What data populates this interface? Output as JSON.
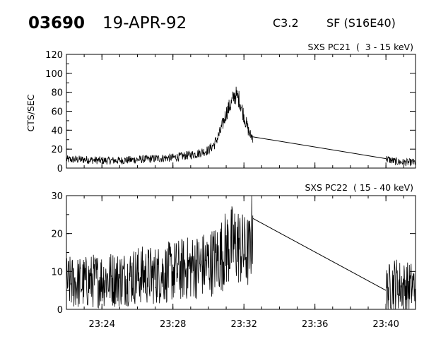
{
  "header": {
    "event_id": "03690",
    "date": "19-APR-92",
    "flare_class": "C3.2",
    "flare_location": "SF (S16E40)"
  },
  "chart_data": [
    {
      "type": "line",
      "title": "SXS PC21  (  3 - 15 keV)",
      "xlabel": "",
      "ylabel": "CTS/SEC",
      "x_unit": "UT time",
      "xlim": [
        "23:22",
        "23:41:40"
      ],
      "ylim": [
        0,
        120
      ],
      "yticks": [
        0,
        20,
        40,
        60,
        80,
        100,
        120
      ],
      "xticks": [
        "23:24",
        "23:28",
        "23:32",
        "23:36",
        "23:40"
      ],
      "grid": false,
      "series": [
        {
          "x": [
            "23:22:00",
            "23:23:00",
            "23:24:00",
            "23:25:00",
            "23:26:00",
            "23:27:00",
            "23:28:00",
            "23:28:40",
            "23:29:20",
            "23:30:00",
            "23:30:20",
            "23:30:40",
            "23:31:00",
            "23:31:20",
            "23:31:30",
            "23:31:45",
            "23:32:00",
            "23:32:10",
            "23:32:20",
            "23:32:30",
            "23:40:00",
            "23:40:30",
            "23:41:00",
            "23:41:40"
          ],
          "y": [
            9,
            9,
            8,
            8,
            9,
            10,
            11,
            13,
            15,
            19,
            25,
            38,
            58,
            70,
            78,
            72,
            55,
            45,
            35,
            33,
            10,
            7,
            6,
            6
          ]
        }
      ]
    },
    {
      "type": "line",
      "title": "SXS PC22  ( 15 - 40 keV)",
      "xlabel": "",
      "ylabel": "",
      "x_unit": "UT time",
      "xlim": [
        "23:22",
        "23:41:40"
      ],
      "ylim": [
        0,
        30
      ],
      "yticks": [
        0,
        10,
        20,
        30
      ],
      "xticks": [
        "23:24",
        "23:28",
        "23:32",
        "23:36",
        "23:40"
      ],
      "grid": false,
      "series": [
        {
          "x": [
            "23:22:00",
            "23:23:00",
            "23:24:00",
            "23:25:00",
            "23:26:00",
            "23:27:00",
            "23:28:00",
            "23:29:00",
            "23:30:00",
            "23:30:40",
            "23:31:00",
            "23:31:20",
            "23:31:40",
            "23:32:00",
            "23:32:20",
            "23:32:30",
            "23:40:00",
            "23:40:30",
            "23:41:00",
            "23:41:40"
          ],
          "y": [
            7,
            7,
            8,
            8,
            9,
            9,
            10,
            11,
            12,
            14,
            16,
            17,
            17,
            15,
            15,
            24,
            5,
            7,
            6,
            6
          ]
        }
      ]
    }
  ]
}
